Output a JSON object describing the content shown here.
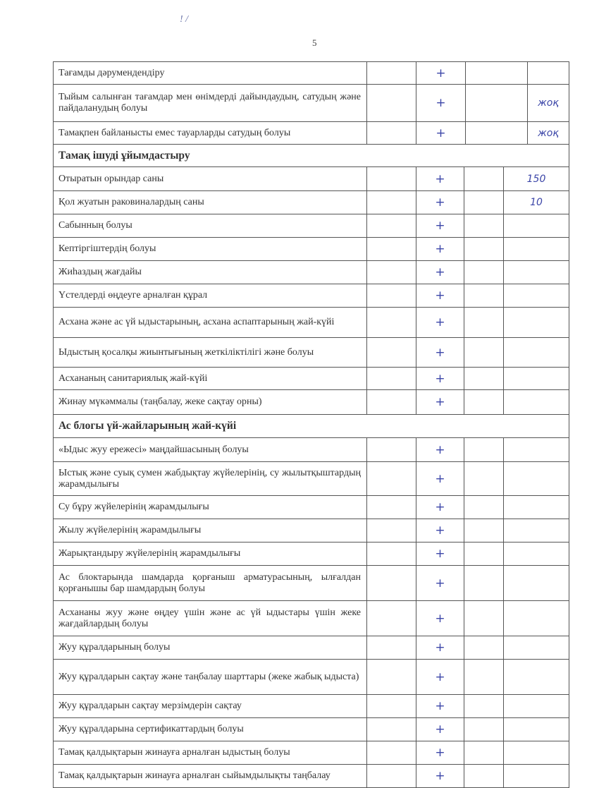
{
  "page_number": "5",
  "corner_marks": "! /",
  "rows": [
    {
      "type": "item",
      "text": "Тағамды дәрумендендіру",
      "mark": "+",
      "note": "",
      "h": 32,
      "wide": true
    },
    {
      "type": "item",
      "text": "Тыйым салынған тағамдар мен өнімдерді дайындаудың, сатудың және пайдаланудың болуы",
      "mark": "+",
      "note": "жоқ",
      "h": 53,
      "wide": true
    },
    {
      "type": "item",
      "text": "Тамақпен байланысты емес тауарларды сатудың болуы",
      "mark": "+",
      "note": "жоқ",
      "h": 32,
      "wide": true
    },
    {
      "type": "section",
      "text": "Тамақ ішуді ұйымдастыру",
      "h": 32
    },
    {
      "type": "item",
      "text": "Отыратын орындар саны",
      "mark": "+",
      "note": "150",
      "h": 34
    },
    {
      "type": "item",
      "text": "Қол жуатын раковиналардың саны",
      "mark": "+",
      "note": "10",
      "h": 33
    },
    {
      "type": "item",
      "text": "Сабынның болуы",
      "mark": "+",
      "note": "",
      "h": 33
    },
    {
      "type": "item",
      "text": "Кептіргіштердің болуы",
      "mark": "+",
      "note": "",
      "h": 33
    },
    {
      "type": "item",
      "text": "Жиһаздың жағдайы",
      "mark": "+",
      "note": "",
      "h": 33
    },
    {
      "type": "item",
      "text": "Үстелдерді өңдеуге арналған құрал",
      "mark": "+",
      "note": "",
      "h": 33
    },
    {
      "type": "item",
      "text": "Асхана және ас үй ыдыстарының, асхана аспаптарының жай-күйі",
      "mark": "+",
      "note": "",
      "h": 43
    },
    {
      "type": "item",
      "text": "Ыдыстың қосалқы жиынтығының жеткіліктілігі және болуы",
      "mark": "+",
      "note": "",
      "h": 42
    },
    {
      "type": "item",
      "text": "Асхананың санитариялық жай-күйі",
      "mark": "+",
      "note": "",
      "h": 32
    },
    {
      "type": "item",
      "text": "Жинау мүкәммалы (таңбалау, жеке сақтау орны)",
      "mark": "+",
      "note": "",
      "h": 35
    },
    {
      "type": "section",
      "text": "Ас блогы үй-жайларының жай-күйі",
      "h": 33
    },
    {
      "type": "item",
      "text": "«Ыдыс жуу ережесі» маңдайшасының болуы",
      "mark": "+",
      "note": "",
      "h": 34
    },
    {
      "type": "item",
      "text": "Ыстық және суық сумен жабдықтау жүйелерінің, су жылытқыштардың жарамдылығы",
      "mark": "+",
      "note": "",
      "h": 48
    },
    {
      "type": "item",
      "text": "Су бұру жүйелерінің жарамдылығы",
      "mark": "+",
      "note": "",
      "h": 33
    },
    {
      "type": "item",
      "text": "Жылу жүйелерінің жарамдылығы",
      "mark": "+",
      "note": "",
      "h": 33
    },
    {
      "type": "item",
      "text": "Жарықтандыру жүйелерінің жарамдылығы",
      "mark": "+",
      "note": "",
      "h": 33
    },
    {
      "type": "item",
      "text": "Ас блоктарында шамдарда қорғаныш арматурасының, ылғалдан қорғанышы бар шамдардың болуы",
      "mark": "+",
      "note": "",
      "h": 50
    },
    {
      "type": "item",
      "text": "Асхананы жуу және өңдеу үшін және ас үй ыдыстары үшін жеке жағдайлардың болуы",
      "mark": "+",
      "note": "",
      "h": 50
    },
    {
      "type": "item",
      "text": "Жуу құралдарының болуы",
      "mark": "+",
      "note": "",
      "h": 33
    },
    {
      "type": "item",
      "text": "Жуу құралдарын сақтау және таңбалау шарттары (жеке жабық ыдыста)",
      "mark": "+",
      "note": "",
      "h": 50
    },
    {
      "type": "item",
      "text": "Жуу құралдарын сақтау мерзімдерін сақтау",
      "mark": "+",
      "note": "",
      "h": 33
    },
    {
      "type": "item",
      "text": "Жуу құралдарына сертификаттардың болуы",
      "mark": "+",
      "note": "",
      "h": 33
    },
    {
      "type": "item",
      "text": "Тамақ қалдықтарын жинауға арналған ыдыстың болуы",
      "mark": "+",
      "note": "",
      "h": 33
    },
    {
      "type": "item",
      "text": "Тамақ қалдықтарын жинауға арналған сыйымдылықты таңбалау",
      "mark": "+",
      "note": "",
      "h": 33
    }
  ]
}
